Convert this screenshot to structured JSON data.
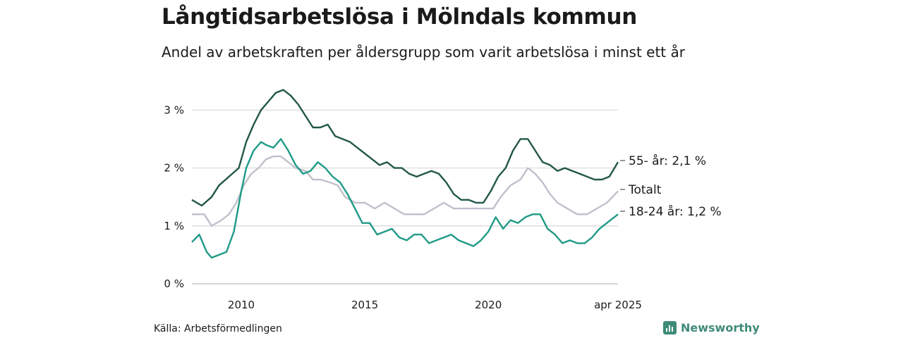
{
  "title": "Långtidsarbetslösa i Mölndals kommun",
  "subtitle": "Andel av arbetskraften per åldersgrupp som varit arbetslösa i minst ett år",
  "source": "Källa: Arbetsförmedlingen",
  "brand": "Newsworthy",
  "colors": {
    "series_55": "#22574a",
    "series_total": "#c2bfcc",
    "series_18_24": "#1f9a86",
    "grid": "#d8d8d8",
    "brand": "#3f8b78"
  },
  "chart_data": {
    "type": "line",
    "x_tick_labels": [
      "2010",
      "2015",
      "2020",
      "apr 2025"
    ],
    "x_ticks": [
      2010,
      2015,
      2020,
      2025.25
    ],
    "y_tick_labels": [
      "0 %",
      "1 %",
      "2 %",
      "3 %"
    ],
    "y_ticks": [
      0,
      1,
      2,
      3
    ],
    "xlim": [
      2008.0,
      2025.25
    ],
    "ylim": [
      0,
      3.6
    ],
    "grid": "horizontal",
    "series": [
      {
        "name": "55- år",
        "end_label": "55- år: 2,1 %",
        "color": "#22574a",
        "points": [
          [
            2008.0,
            1.45
          ],
          [
            2008.4,
            1.35
          ],
          [
            2008.8,
            1.5
          ],
          [
            2009.1,
            1.7
          ],
          [
            2009.5,
            1.85
          ],
          [
            2009.9,
            2.0
          ],
          [
            2010.2,
            2.45
          ],
          [
            2010.5,
            2.75
          ],
          [
            2010.8,
            3.0
          ],
          [
            2011.1,
            3.15
          ],
          [
            2011.4,
            3.3
          ],
          [
            2011.7,
            3.35
          ],
          [
            2012.0,
            3.25
          ],
          [
            2012.3,
            3.1
          ],
          [
            2012.6,
            2.9
          ],
          [
            2012.9,
            2.7
          ],
          [
            2013.2,
            2.7
          ],
          [
            2013.5,
            2.75
          ],
          [
            2013.8,
            2.55
          ],
          [
            2014.1,
            2.5
          ],
          [
            2014.4,
            2.45
          ],
          [
            2014.7,
            2.35
          ],
          [
            2015.0,
            2.25
          ],
          [
            2015.3,
            2.15
          ],
          [
            2015.6,
            2.05
          ],
          [
            2015.9,
            2.1
          ],
          [
            2016.2,
            2.0
          ],
          [
            2016.5,
            2.0
          ],
          [
            2016.8,
            1.9
          ],
          [
            2017.1,
            1.85
          ],
          [
            2017.4,
            1.9
          ],
          [
            2017.7,
            1.95
          ],
          [
            2018.0,
            1.9
          ],
          [
            2018.3,
            1.75
          ],
          [
            2018.6,
            1.55
          ],
          [
            2018.9,
            1.45
          ],
          [
            2019.2,
            1.45
          ],
          [
            2019.5,
            1.4
          ],
          [
            2019.8,
            1.4
          ],
          [
            2020.1,
            1.6
          ],
          [
            2020.4,
            1.85
          ],
          [
            2020.7,
            2.0
          ],
          [
            2021.0,
            2.3
          ],
          [
            2021.3,
            2.5
          ],
          [
            2021.6,
            2.5
          ],
          [
            2021.9,
            2.3
          ],
          [
            2022.2,
            2.1
          ],
          [
            2022.5,
            2.05
          ],
          [
            2022.8,
            1.95
          ],
          [
            2023.1,
            2.0
          ],
          [
            2023.4,
            1.95
          ],
          [
            2023.7,
            1.9
          ],
          [
            2024.0,
            1.85
          ],
          [
            2024.3,
            1.8
          ],
          [
            2024.6,
            1.8
          ],
          [
            2024.9,
            1.85
          ],
          [
            2025.25,
            2.1
          ]
        ]
      },
      {
        "name": "Totalt",
        "end_label": "Totalt",
        "color": "#c2bfcc",
        "points": [
          [
            2008.0,
            1.2
          ],
          [
            2008.5,
            1.2
          ],
          [
            2008.8,
            1.0
          ],
          [
            2009.2,
            1.1
          ],
          [
            2009.5,
            1.2
          ],
          [
            2009.8,
            1.4
          ],
          [
            2010.1,
            1.7
          ],
          [
            2010.4,
            1.9
          ],
          [
            2010.7,
            2.0
          ],
          [
            2011.0,
            2.15
          ],
          [
            2011.3,
            2.2
          ],
          [
            2011.6,
            2.2
          ],
          [
            2011.9,
            2.1
          ],
          [
            2012.2,
            2.0
          ],
          [
            2012.6,
            1.95
          ],
          [
            2012.9,
            1.8
          ],
          [
            2013.2,
            1.8
          ],
          [
            2013.6,
            1.75
          ],
          [
            2013.9,
            1.7
          ],
          [
            2014.2,
            1.5
          ],
          [
            2014.6,
            1.4
          ],
          [
            2015.0,
            1.4
          ],
          [
            2015.4,
            1.3
          ],
          [
            2015.8,
            1.4
          ],
          [
            2016.2,
            1.3
          ],
          [
            2016.6,
            1.2
          ],
          [
            2017.0,
            1.2
          ],
          [
            2017.4,
            1.2
          ],
          [
            2017.8,
            1.3
          ],
          [
            2018.2,
            1.4
          ],
          [
            2018.6,
            1.3
          ],
          [
            2019.0,
            1.3
          ],
          [
            2019.4,
            1.3
          ],
          [
            2019.8,
            1.3
          ],
          [
            2020.2,
            1.3
          ],
          [
            2020.5,
            1.5
          ],
          [
            2020.9,
            1.7
          ],
          [
            2021.3,
            1.8
          ],
          [
            2021.6,
            2.0
          ],
          [
            2021.9,
            1.9
          ],
          [
            2022.2,
            1.75
          ],
          [
            2022.5,
            1.55
          ],
          [
            2022.8,
            1.4
          ],
          [
            2023.2,
            1.3
          ],
          [
            2023.6,
            1.2
          ],
          [
            2024.0,
            1.2
          ],
          [
            2024.4,
            1.3
          ],
          [
            2024.8,
            1.4
          ],
          [
            2025.25,
            1.6
          ]
        ]
      },
      {
        "name": "18-24 år",
        "end_label": "18-24 år: 1,2 %",
        "color": "#1f9a86",
        "points": [
          [
            2008.0,
            0.72
          ],
          [
            2008.3,
            0.85
          ],
          [
            2008.6,
            0.55
          ],
          [
            2008.8,
            0.45
          ],
          [
            2009.1,
            0.5
          ],
          [
            2009.4,
            0.55
          ],
          [
            2009.7,
            0.9
          ],
          [
            2010.0,
            1.6
          ],
          [
            2010.2,
            2.0
          ],
          [
            2010.5,
            2.3
          ],
          [
            2010.8,
            2.45
          ],
          [
            2011.0,
            2.4
          ],
          [
            2011.3,
            2.35
          ],
          [
            2011.6,
            2.5
          ],
          [
            2011.9,
            2.3
          ],
          [
            2012.2,
            2.05
          ],
          [
            2012.5,
            1.9
          ],
          [
            2012.8,
            1.95
          ],
          [
            2013.1,
            2.1
          ],
          [
            2013.4,
            2.0
          ],
          [
            2013.7,
            1.85
          ],
          [
            2014.0,
            1.75
          ],
          [
            2014.3,
            1.55
          ],
          [
            2014.6,
            1.3
          ],
          [
            2014.9,
            1.05
          ],
          [
            2015.2,
            1.05
          ],
          [
            2015.5,
            0.85
          ],
          [
            2015.8,
            0.9
          ],
          [
            2016.1,
            0.95
          ],
          [
            2016.4,
            0.8
          ],
          [
            2016.7,
            0.75
          ],
          [
            2017.0,
            0.85
          ],
          [
            2017.3,
            0.85
          ],
          [
            2017.6,
            0.7
          ],
          [
            2017.9,
            0.75
          ],
          [
            2018.2,
            0.8
          ],
          [
            2018.5,
            0.85
          ],
          [
            2018.8,
            0.75
          ],
          [
            2019.1,
            0.7
          ],
          [
            2019.4,
            0.65
          ],
          [
            2019.7,
            0.75
          ],
          [
            2020.0,
            0.9
          ],
          [
            2020.3,
            1.15
          ],
          [
            2020.6,
            0.95
          ],
          [
            2020.9,
            1.1
          ],
          [
            2021.2,
            1.05
          ],
          [
            2021.5,
            1.15
          ],
          [
            2021.8,
            1.2
          ],
          [
            2022.1,
            1.2
          ],
          [
            2022.4,
            0.95
          ],
          [
            2022.7,
            0.85
          ],
          [
            2023.0,
            0.7
          ],
          [
            2023.3,
            0.75
          ],
          [
            2023.6,
            0.7
          ],
          [
            2023.9,
            0.7
          ],
          [
            2024.2,
            0.8
          ],
          [
            2024.5,
            0.95
          ],
          [
            2024.8,
            1.05
          ],
          [
            2025.25,
            1.2
          ]
        ]
      }
    ]
  }
}
